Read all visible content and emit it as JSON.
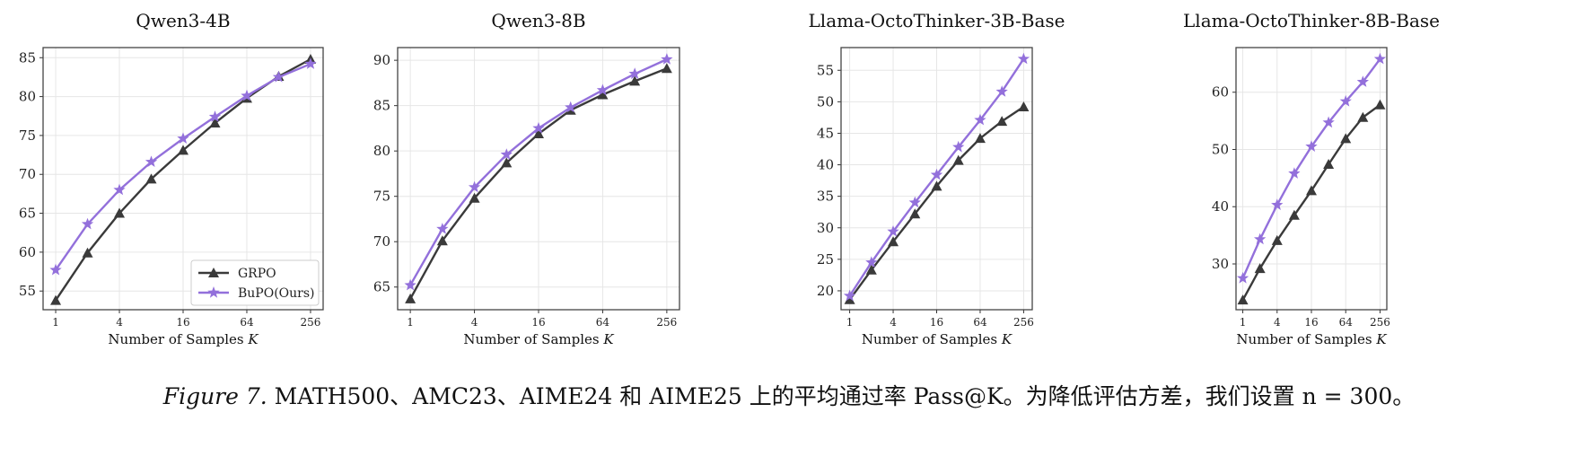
{
  "chart_data": [
    {
      "type": "line",
      "title": "Qwen3-4B",
      "xlabel": "Number of Samples K",
      "x": [
        1,
        2,
        4,
        8,
        16,
        32,
        64,
        128,
        256
      ],
      "xticks": [
        "1",
        "4",
        "16",
        "64",
        "256"
      ],
      "ylim": [
        52.6,
        86.3
      ],
      "yticks": [
        55,
        60,
        65,
        70,
        75,
        80,
        85
      ],
      "grid": true,
      "legend": "lower-right",
      "series": [
        {
          "name": "GRPO",
          "values": [
            53.8,
            59.9,
            65.0,
            69.4,
            73.1,
            76.6,
            79.8,
            82.6,
            84.8
          ]
        },
        {
          "name": "BuPO(Ours)",
          "values": [
            57.7,
            63.6,
            68.0,
            71.6,
            74.6,
            77.4,
            80.1,
            82.5,
            84.2
          ]
        }
      ]
    },
    {
      "type": "line",
      "title": "Qwen3-8B",
      "xlabel": "Number of Samples K",
      "x": [
        1,
        2,
        4,
        8,
        16,
        32,
        64,
        128,
        256
      ],
      "xticks": [
        "1",
        "4",
        "16",
        "64",
        "256"
      ],
      "ylim": [
        62.5,
        91.4
      ],
      "yticks": [
        65,
        70,
        75,
        80,
        85,
        90
      ],
      "grid": true,
      "series": [
        {
          "name": "GRPO",
          "values": [
            63.7,
            70.1,
            74.8,
            78.7,
            81.9,
            84.5,
            86.2,
            87.7,
            89.1
          ]
        },
        {
          "name": "BuPO(Ours)",
          "values": [
            65.2,
            71.4,
            76.0,
            79.6,
            82.5,
            84.8,
            86.7,
            88.5,
            90.1
          ]
        }
      ]
    },
    {
      "type": "line",
      "title": "Llama-OctoThinker-3B-Base",
      "xlabel": "Number of Samples K",
      "x": [
        1,
        2,
        4,
        8,
        16,
        32,
        64,
        128,
        256
      ],
      "xticks": [
        "1",
        "4",
        "16",
        "64",
        "256"
      ],
      "ylim": [
        17.0,
        58.6
      ],
      "yticks": [
        20,
        25,
        30,
        35,
        40,
        45,
        50,
        55
      ],
      "grid": true,
      "series": [
        {
          "name": "GRPO",
          "values": [
            18.6,
            23.3,
            27.8,
            32.2,
            36.6,
            40.7,
            44.2,
            46.9,
            49.2
          ]
        },
        {
          "name": "BuPO(Ours)",
          "values": [
            19.2,
            24.5,
            29.4,
            34.0,
            38.4,
            42.8,
            47.1,
            51.6,
            56.8
          ]
        }
      ]
    },
    {
      "type": "line",
      "title": "Llama-OctoThinker-8B-Base",
      "xlabel": "Number of Samples K",
      "x": [
        1,
        2,
        4,
        8,
        16,
        32,
        64,
        128,
        256
      ],
      "xticks": [
        "1",
        "4",
        "16",
        "64",
        "256"
      ],
      "ylim": [
        22.0,
        67.8
      ],
      "yticks": [
        30,
        40,
        50,
        60
      ],
      "grid": true,
      "series": [
        {
          "name": "GRPO",
          "values": [
            23.7,
            29.2,
            34.1,
            38.5,
            42.8,
            47.4,
            51.9,
            55.6,
            57.8
          ]
        },
        {
          "name": "BuPO(Ours)",
          "values": [
            27.5,
            34.3,
            40.3,
            45.8,
            50.5,
            54.7,
            58.4,
            61.8,
            65.8
          ]
        }
      ]
    }
  ],
  "colors": {
    "GRPO": "#3a3a3a",
    "BuPO": "#9370db"
  },
  "caption": {
    "label": "Figure 7.",
    "text": " MATH500、AMC23、AIME24 和 AIME25 上的平均通过率 Pass@K。为降低评估方差，我们设置 n = 300。"
  }
}
